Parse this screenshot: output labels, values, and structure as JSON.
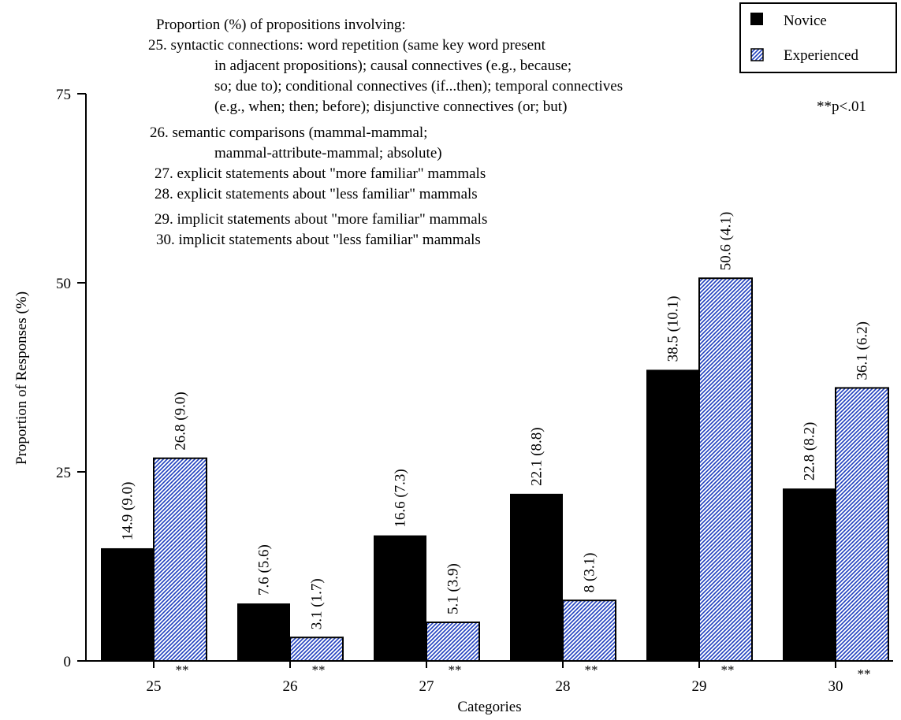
{
  "chart_data": {
    "type": "bar",
    "categories": [
      "25",
      "26",
      "27",
      "28",
      "29",
      "30"
    ],
    "series": [
      {
        "name": "Novice",
        "values": [
          14.9,
          7.6,
          16.6,
          22.1,
          38.5,
          22.8
        ],
        "sds": [
          "(9.0)",
          "(5.6)",
          "(7.3)",
          "(8.8)",
          "(10.1)",
          "(8.2)"
        ],
        "labels": [
          "14.9",
          "7.6",
          "16.6",
          "22.1",
          "38.5",
          "22.8"
        ]
      },
      {
        "name": "Experienced",
        "values": [
          26.8,
          3.1,
          5.1,
          8,
          50.6,
          36.1
        ],
        "sds": [
          "(9.0)",
          "(1.7)",
          "(3.9)",
          "(3.1)",
          "(4.1)",
          "(6.2)"
        ],
        "labels": [
          "26.8",
          "3.1",
          "5.1",
          "8",
          "50.6",
          "36.1"
        ]
      }
    ],
    "significance_marks": [
      "**",
      "**",
      "**",
      "**",
      "**",
      "**"
    ],
    "xlabel": "Categories",
    "ylabel": "Proportion of Responses (%)",
    "ylim": [
      0,
      75
    ],
    "yticks": [
      0,
      25,
      50,
      75
    ],
    "grid": false,
    "legend_position": "top-right",
    "significance_note": "**p<.01",
    "annotation_lines": [
      "Proportion (%) of propositions involving:",
      "25.  syntactic connections:  word repetition (same key word present",
      "in adjacent propositions); causal connectives (e.g., because;",
      "so; due to); conditional connectives (if...then); temporal connectives",
      "(e.g., when; then; before); disjunctive connectives (or; but)",
      "26.  semantic comparisons (mammal-mammal;",
      "mammal-attribute-mammal; absolute)",
      "27.  explicit statements about \"more familiar\" mammals",
      "28.  explicit statements about \"less familiar\" mammals",
      "29.  implicit statements about \"more familiar\" mammals",
      "30.  implicit statements about \"less familiar\" mammals"
    ],
    "colors": {
      "novice": "#000000",
      "experienced_fill": "#ffffff",
      "experienced_hatch": "#1f3fbf"
    }
  }
}
